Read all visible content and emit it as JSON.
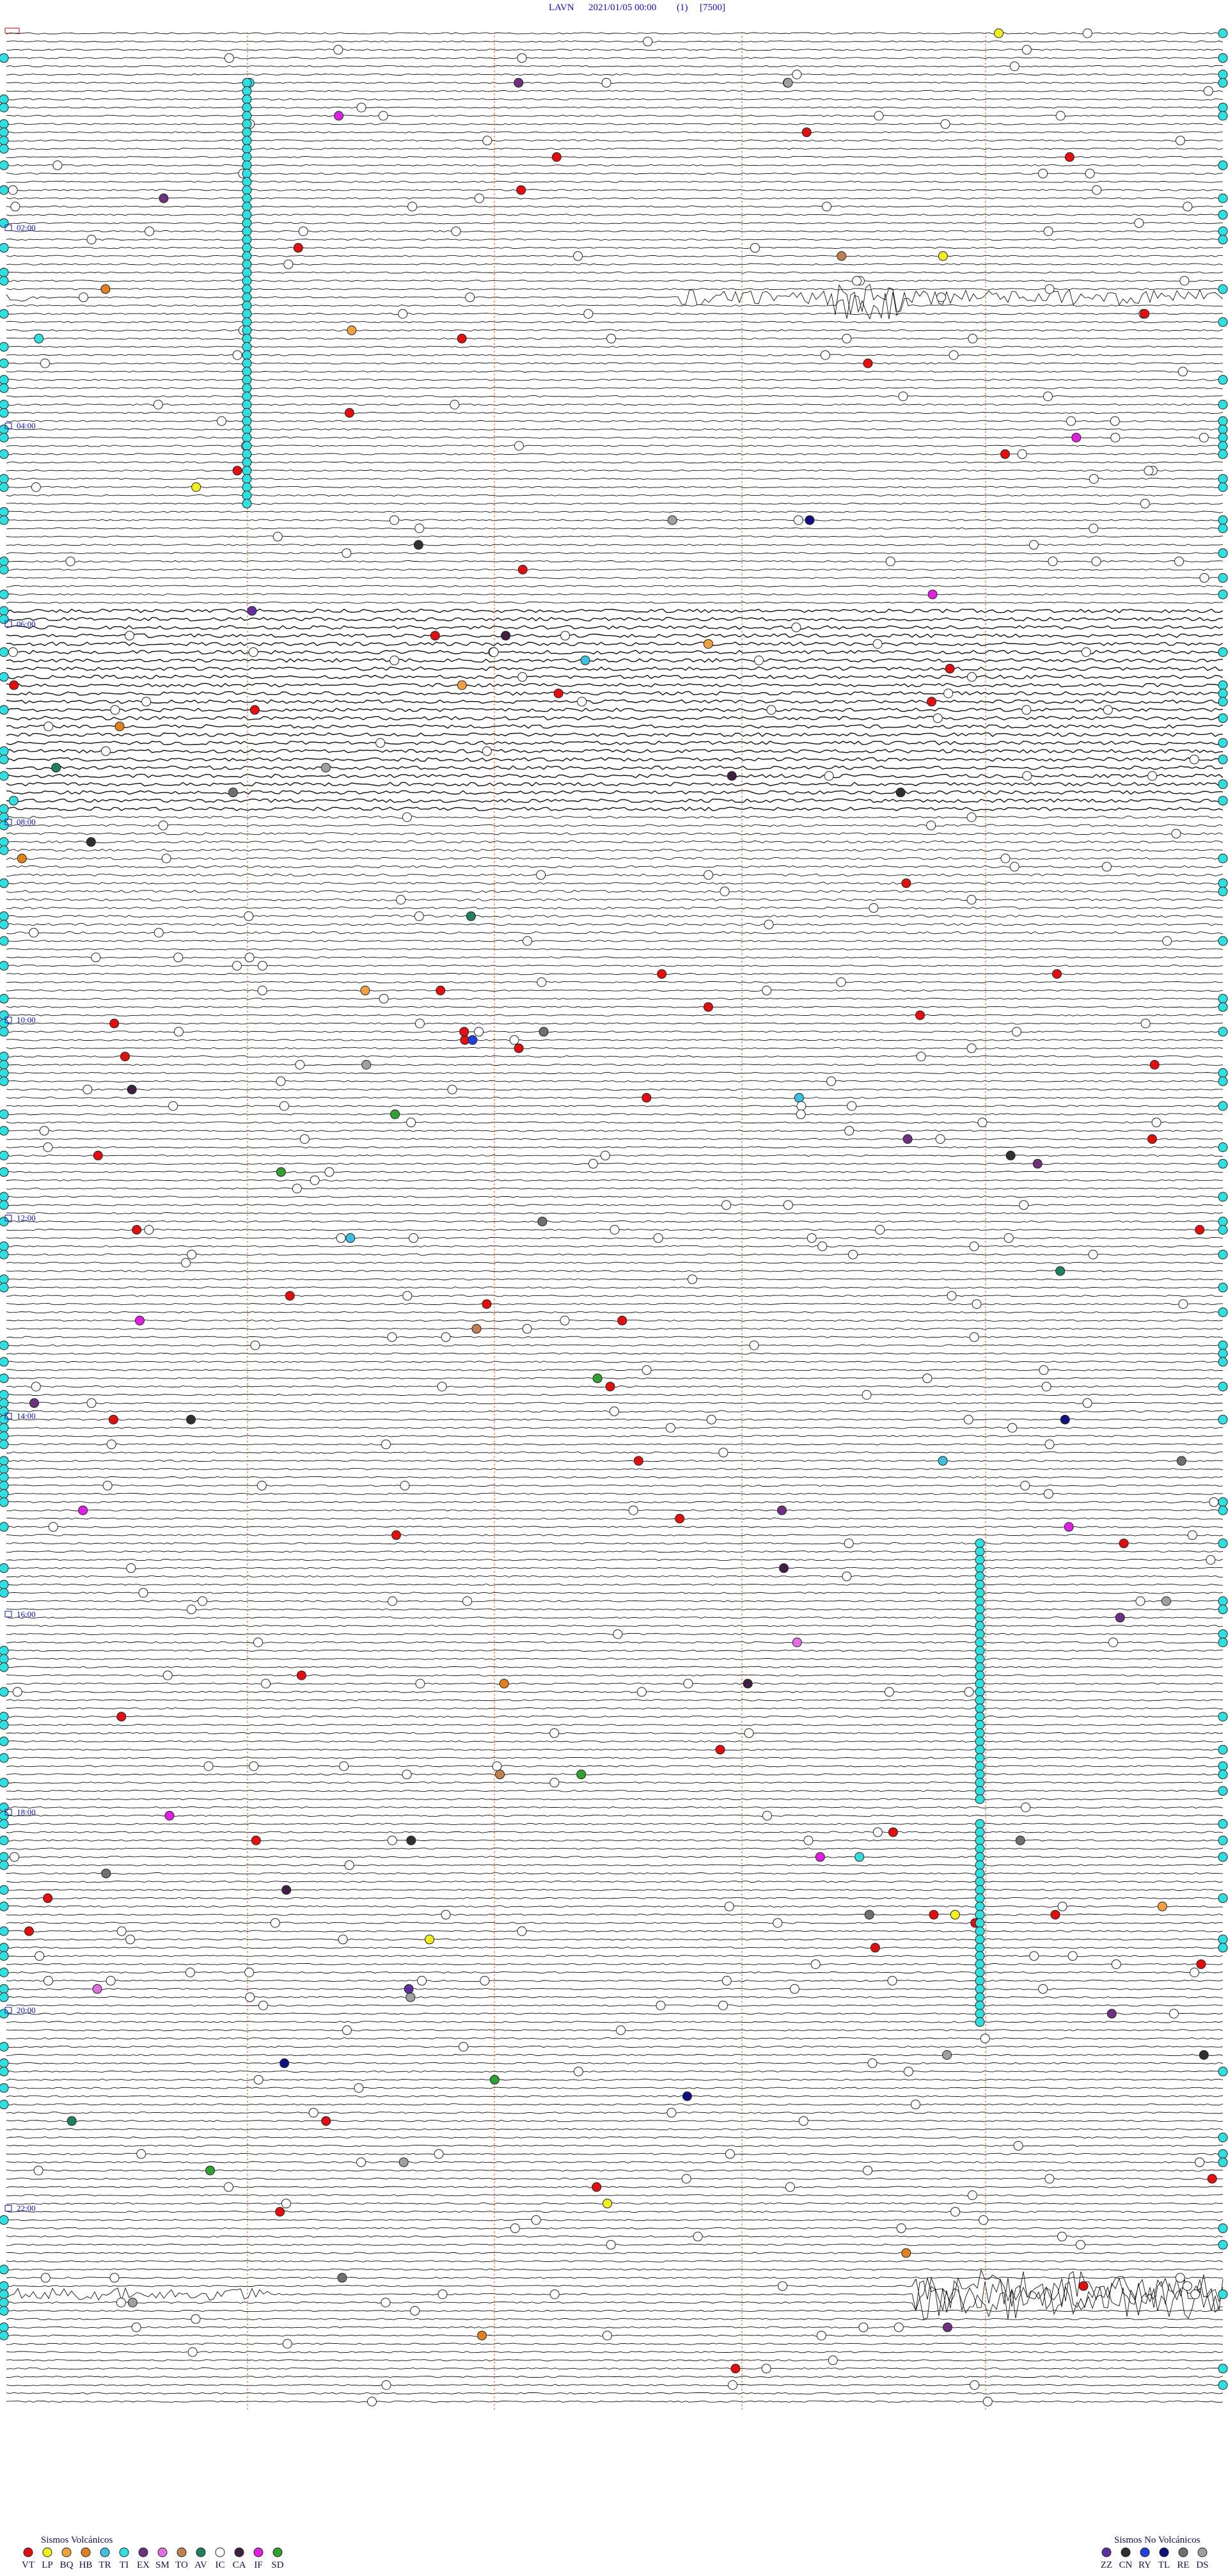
{
  "header": {
    "station": "LAVN",
    "datetime": "2021/01/05 00:00",
    "channel": "(1)",
    "scale": "[7500]"
  },
  "hour_labels": [
    "02:00",
    "04:00",
    "06:00",
    "08:00",
    "10:00",
    "12:00",
    "14:00",
    "16:00",
    "18:00",
    "20:00",
    "22:00"
  ],
  "legend": {
    "volcanic": {
      "title": "Sismos Volcánicos",
      "codes": [
        {
          "code": "VT",
          "color": "#e01010"
        },
        {
          "code": "LP",
          "color": "#f0f020"
        },
        {
          "code": "BQ",
          "color": "#f0a040"
        },
        {
          "code": "HB",
          "color": "#e08020"
        },
        {
          "code": "TR",
          "color": "#40c0e0"
        },
        {
          "code": "TI",
          "color": "#30e0e0"
        },
        {
          "code": "EX",
          "color": "#703080"
        },
        {
          "code": "SM",
          "color": "#e070e0"
        },
        {
          "code": "TO",
          "color": "#c08050"
        },
        {
          "code": "AV",
          "color": "#208060"
        },
        {
          "code": "IC",
          "color": "#ffffff"
        },
        {
          "code": "CA",
          "color": "#402040"
        },
        {
          "code": "IF",
          "color": "#e020e0"
        },
        {
          "code": "SD",
          "color": "#30a030"
        }
      ]
    },
    "non_volcanic": {
      "title": "Sismos No Volcánicos",
      "codes": [
        {
          "code": "ZZ",
          "color": "#6030a0"
        },
        {
          "code": "CN",
          "color": "#303030"
        },
        {
          "code": "RY",
          "color": "#2040e0"
        },
        {
          "code": "TL",
          "color": "#101080"
        },
        {
          "code": "RE",
          "color": "#707070"
        },
        {
          "code": "DS",
          "color": "#a0a0a0"
        }
      ]
    }
  }
}
